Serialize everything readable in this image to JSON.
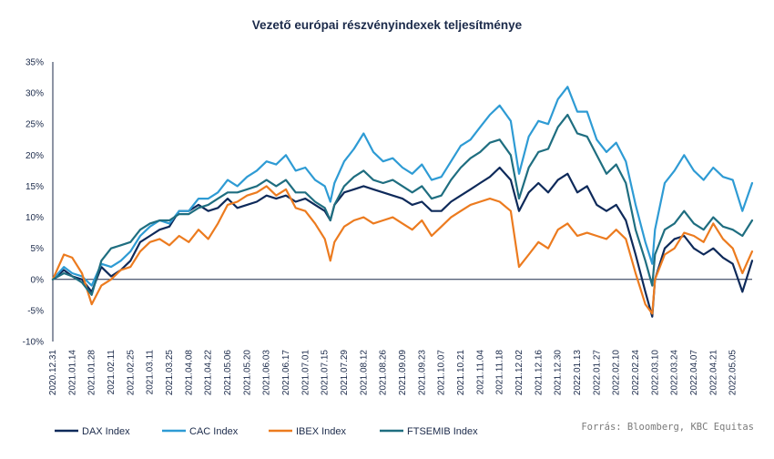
{
  "chart_data": {
    "type": "line",
    "title": "Vezető európai részvényindexek  teljesítménye",
    "source": "Forrás: Bloomberg,  KBC Equitas",
    "xlabel": "",
    "ylabel": "",
    "ylim": [
      -0.1,
      0.35
    ],
    "yticks": [
      -0.1,
      -0.05,
      0.0,
      0.05,
      0.1,
      0.15,
      0.2,
      0.25,
      0.3,
      0.35
    ],
    "ytick_labels": [
      "-10%",
      "-5%",
      "0%",
      "5%",
      "10%",
      "15%",
      "20%",
      "25%",
      "30%",
      "35%"
    ],
    "xlim": [
      "2020-12-31",
      "2022-05-19"
    ],
    "xtick_labels": [
      "2020.12.31",
      "2021.01.14",
      "2021.01.28",
      "2021.02.11",
      "2021.02.25",
      "2021.03.11",
      "2021.03.25",
      "2021.04.08",
      "2021.04.22",
      "2021.05.06",
      "2021.05.20",
      "2021.06.03",
      "2021.06.17",
      "2021.07.01",
      "2021.07.15",
      "2021.07.29",
      "2021.08.12",
      "2021.08.26",
      "2021.09.09",
      "2021.09.23",
      "2021.10.07",
      "2021.10.21",
      "2021.11.04",
      "2021.11.18",
      "2021.12.02",
      "2021.12.16",
      "2021.12.30",
      "2022.01.13",
      "2022.01.27",
      "2022.02.10",
      "2022.02.24",
      "2022.03.10",
      "2022.03.24",
      "2022.04.07",
      "2022.04.21",
      "2022.05.05"
    ],
    "grid": false,
    "legend_position": "bottom",
    "series": [
      {
        "name": "DAX Index",
        "color": "#0e2a5a",
        "x": [
          "2020-12-31",
          "2021-01-08",
          "2021-01-14",
          "2021-01-21",
          "2021-01-28",
          "2021-02-04",
          "2021-02-11",
          "2021-02-18",
          "2021-02-25",
          "2021-03-04",
          "2021-03-11",
          "2021-03-18",
          "2021-03-25",
          "2021-04-01",
          "2021-04-08",
          "2021-04-15",
          "2021-04-22",
          "2021-04-29",
          "2021-05-06",
          "2021-05-13",
          "2021-05-20",
          "2021-05-27",
          "2021-06-03",
          "2021-06-10",
          "2021-06-17",
          "2021-06-24",
          "2021-07-01",
          "2021-07-08",
          "2021-07-15",
          "2021-07-19",
          "2021-07-22",
          "2021-07-29",
          "2021-08-05",
          "2021-08-12",
          "2021-08-19",
          "2021-08-26",
          "2021-09-02",
          "2021-09-09",
          "2021-09-16",
          "2021-09-23",
          "2021-09-30",
          "2021-10-07",
          "2021-10-14",
          "2021-10-21",
          "2021-10-28",
          "2021-11-04",
          "2021-11-11",
          "2021-11-18",
          "2021-11-26",
          "2021-12-02",
          "2021-12-09",
          "2021-12-16",
          "2021-12-23",
          "2021-12-30",
          "2022-01-06",
          "2022-01-13",
          "2022-01-20",
          "2022-01-27",
          "2022-02-03",
          "2022-02-10",
          "2022-02-17",
          "2022-02-24",
          "2022-03-03",
          "2022-03-08",
          "2022-03-10",
          "2022-03-17",
          "2022-03-24",
          "2022-03-31",
          "2022-04-07",
          "2022-04-14",
          "2022-04-21",
          "2022-04-28",
          "2022-05-05",
          "2022-05-12",
          "2022-05-19"
        ],
        "values": [
          0.0,
          0.015,
          0.005,
          0.0,
          -0.02,
          0.02,
          0.005,
          0.015,
          0.03,
          0.06,
          0.07,
          0.08,
          0.085,
          0.11,
          0.11,
          0.12,
          0.11,
          0.115,
          0.13,
          0.115,
          0.12,
          0.125,
          0.135,
          0.13,
          0.135,
          0.125,
          0.13,
          0.12,
          0.11,
          0.095,
          0.12,
          0.14,
          0.145,
          0.15,
          0.145,
          0.14,
          0.135,
          0.13,
          0.12,
          0.125,
          0.11,
          0.11,
          0.125,
          0.135,
          0.145,
          0.155,
          0.165,
          0.18,
          0.16,
          0.11,
          0.14,
          0.155,
          0.14,
          0.16,
          0.17,
          0.14,
          0.15,
          0.12,
          0.11,
          0.12,
          0.095,
          0.04,
          -0.02,
          -0.06,
          0.0,
          0.05,
          0.065,
          0.07,
          0.05,
          0.04,
          0.05,
          0.035,
          0.025,
          -0.02,
          0.03
        ]
      },
      {
        "name": "CAC Index",
        "color": "#2e9bd4",
        "x": [
          "2020-12-31",
          "2021-01-08",
          "2021-01-14",
          "2021-01-21",
          "2021-01-28",
          "2021-02-04",
          "2021-02-11",
          "2021-02-18",
          "2021-02-25",
          "2021-03-04",
          "2021-03-11",
          "2021-03-18",
          "2021-03-25",
          "2021-04-01",
          "2021-04-08",
          "2021-04-15",
          "2021-04-22",
          "2021-04-29",
          "2021-05-06",
          "2021-05-13",
          "2021-05-20",
          "2021-05-27",
          "2021-06-03",
          "2021-06-10",
          "2021-06-17",
          "2021-06-24",
          "2021-07-01",
          "2021-07-08",
          "2021-07-15",
          "2021-07-19",
          "2021-07-22",
          "2021-07-29",
          "2021-08-05",
          "2021-08-12",
          "2021-08-19",
          "2021-08-26",
          "2021-09-02",
          "2021-09-09",
          "2021-09-16",
          "2021-09-23",
          "2021-09-30",
          "2021-10-07",
          "2021-10-14",
          "2021-10-21",
          "2021-10-28",
          "2021-11-04",
          "2021-11-11",
          "2021-11-18",
          "2021-11-26",
          "2021-12-02",
          "2021-12-09",
          "2021-12-16",
          "2021-12-23",
          "2021-12-30",
          "2022-01-06",
          "2022-01-13",
          "2022-01-20",
          "2022-01-27",
          "2022-02-03",
          "2022-02-10",
          "2022-02-17",
          "2022-02-24",
          "2022-03-03",
          "2022-03-08",
          "2022-03-10",
          "2022-03-17",
          "2022-03-24",
          "2022-03-31",
          "2022-04-07",
          "2022-04-14",
          "2022-04-21",
          "2022-04-28",
          "2022-05-05",
          "2022-05-12",
          "2022-05-19"
        ],
        "values": [
          0.0,
          0.02,
          0.01,
          0.005,
          -0.01,
          0.025,
          0.02,
          0.03,
          0.045,
          0.07,
          0.085,
          0.095,
          0.09,
          0.11,
          0.11,
          0.13,
          0.13,
          0.14,
          0.16,
          0.15,
          0.165,
          0.175,
          0.19,
          0.185,
          0.2,
          0.175,
          0.18,
          0.16,
          0.15,
          0.125,
          0.155,
          0.19,
          0.21,
          0.235,
          0.205,
          0.19,
          0.195,
          0.18,
          0.17,
          0.185,
          0.16,
          0.165,
          0.19,
          0.215,
          0.225,
          0.245,
          0.265,
          0.28,
          0.255,
          0.17,
          0.23,
          0.255,
          0.25,
          0.29,
          0.31,
          0.27,
          0.27,
          0.225,
          0.205,
          0.22,
          0.19,
          0.12,
          0.06,
          0.025,
          0.08,
          0.155,
          0.175,
          0.2,
          0.175,
          0.16,
          0.18,
          0.165,
          0.16,
          0.11,
          0.155
        ]
      },
      {
        "name": "IBEX Index",
        "color": "#ec7b1f",
        "x": [
          "2020-12-31",
          "2021-01-08",
          "2021-01-14",
          "2021-01-21",
          "2021-01-28",
          "2021-02-04",
          "2021-02-11",
          "2021-02-18",
          "2021-02-25",
          "2021-03-04",
          "2021-03-11",
          "2021-03-18",
          "2021-03-25",
          "2021-04-01",
          "2021-04-08",
          "2021-04-15",
          "2021-04-22",
          "2021-04-29",
          "2021-05-06",
          "2021-05-13",
          "2021-05-20",
          "2021-05-27",
          "2021-06-03",
          "2021-06-10",
          "2021-06-17",
          "2021-06-24",
          "2021-07-01",
          "2021-07-08",
          "2021-07-15",
          "2021-07-19",
          "2021-07-22",
          "2021-07-29",
          "2021-08-05",
          "2021-08-12",
          "2021-08-19",
          "2021-08-26",
          "2021-09-02",
          "2021-09-09",
          "2021-09-16",
          "2021-09-23",
          "2021-09-30",
          "2021-10-07",
          "2021-10-14",
          "2021-10-21",
          "2021-10-28",
          "2021-11-04",
          "2021-11-11",
          "2021-11-18",
          "2021-11-26",
          "2021-12-02",
          "2021-12-09",
          "2021-12-16",
          "2021-12-23",
          "2021-12-30",
          "2022-01-06",
          "2022-01-13",
          "2022-01-20",
          "2022-01-27",
          "2022-02-03",
          "2022-02-10",
          "2022-02-17",
          "2022-02-24",
          "2022-03-03",
          "2022-03-08",
          "2022-03-10",
          "2022-03-17",
          "2022-03-24",
          "2022-03-31",
          "2022-04-07",
          "2022-04-14",
          "2022-04-21",
          "2022-04-28",
          "2022-05-05",
          "2022-05-12",
          "2022-05-19"
        ],
        "values": [
          0.0,
          0.04,
          0.035,
          0.01,
          -0.04,
          -0.01,
          0.0,
          0.015,
          0.02,
          0.045,
          0.06,
          0.065,
          0.055,
          0.07,
          0.06,
          0.08,
          0.065,
          0.09,
          0.12,
          0.125,
          0.135,
          0.14,
          0.15,
          0.135,
          0.145,
          0.115,
          0.11,
          0.09,
          0.065,
          0.03,
          0.06,
          0.085,
          0.095,
          0.1,
          0.09,
          0.095,
          0.1,
          0.09,
          0.08,
          0.095,
          0.07,
          0.085,
          0.1,
          0.11,
          0.12,
          0.125,
          0.13,
          0.125,
          0.11,
          0.02,
          0.04,
          0.06,
          0.05,
          0.08,
          0.09,
          0.07,
          0.075,
          0.07,
          0.065,
          0.08,
          0.065,
          0.01,
          -0.04,
          -0.055,
          0.0,
          0.04,
          0.05,
          0.075,
          0.07,
          0.06,
          0.09,
          0.065,
          0.05,
          0.01,
          0.045
        ]
      },
      {
        "name": "FTSEMIB Index",
        "color": "#1f6e80",
        "x": [
          "2020-12-31",
          "2021-01-08",
          "2021-01-14",
          "2021-01-21",
          "2021-01-28",
          "2021-02-04",
          "2021-02-11",
          "2021-02-18",
          "2021-02-25",
          "2021-03-04",
          "2021-03-11",
          "2021-03-18",
          "2021-03-25",
          "2021-04-01",
          "2021-04-08",
          "2021-04-15",
          "2021-04-22",
          "2021-04-29",
          "2021-05-06",
          "2021-05-13",
          "2021-05-20",
          "2021-05-27",
          "2021-06-03",
          "2021-06-10",
          "2021-06-17",
          "2021-06-24",
          "2021-07-01",
          "2021-07-08",
          "2021-07-15",
          "2021-07-19",
          "2021-07-22",
          "2021-07-29",
          "2021-08-05",
          "2021-08-12",
          "2021-08-19",
          "2021-08-26",
          "2021-09-02",
          "2021-09-09",
          "2021-09-16",
          "2021-09-23",
          "2021-09-30",
          "2021-10-07",
          "2021-10-14",
          "2021-10-21",
          "2021-10-28",
          "2021-11-04",
          "2021-11-11",
          "2021-11-18",
          "2021-11-26",
          "2021-12-02",
          "2021-12-09",
          "2021-12-16",
          "2021-12-23",
          "2021-12-30",
          "2022-01-06",
          "2022-01-13",
          "2022-01-20",
          "2022-01-27",
          "2022-02-03",
          "2022-02-10",
          "2022-02-17",
          "2022-02-24",
          "2022-03-03",
          "2022-03-08",
          "2022-03-10",
          "2022-03-17",
          "2022-03-24",
          "2022-03-31",
          "2022-04-07",
          "2022-04-14",
          "2022-04-21",
          "2022-04-28",
          "2022-05-05",
          "2022-05-12",
          "2022-05-19"
        ],
        "values": [
          0.0,
          0.01,
          0.005,
          -0.005,
          -0.025,
          0.03,
          0.05,
          0.055,
          0.06,
          0.08,
          0.09,
          0.095,
          0.095,
          0.105,
          0.105,
          0.115,
          0.12,
          0.13,
          0.14,
          0.14,
          0.145,
          0.15,
          0.16,
          0.15,
          0.16,
          0.14,
          0.14,
          0.125,
          0.115,
          0.095,
          0.12,
          0.15,
          0.165,
          0.175,
          0.16,
          0.155,
          0.16,
          0.15,
          0.14,
          0.15,
          0.13,
          0.135,
          0.16,
          0.18,
          0.195,
          0.205,
          0.22,
          0.225,
          0.2,
          0.13,
          0.18,
          0.205,
          0.21,
          0.245,
          0.265,
          0.235,
          0.23,
          0.2,
          0.17,
          0.185,
          0.155,
          0.08,
          0.03,
          -0.01,
          0.04,
          0.08,
          0.09,
          0.11,
          0.09,
          0.08,
          0.1,
          0.085,
          0.08,
          0.07,
          0.095
        ]
      }
    ]
  }
}
